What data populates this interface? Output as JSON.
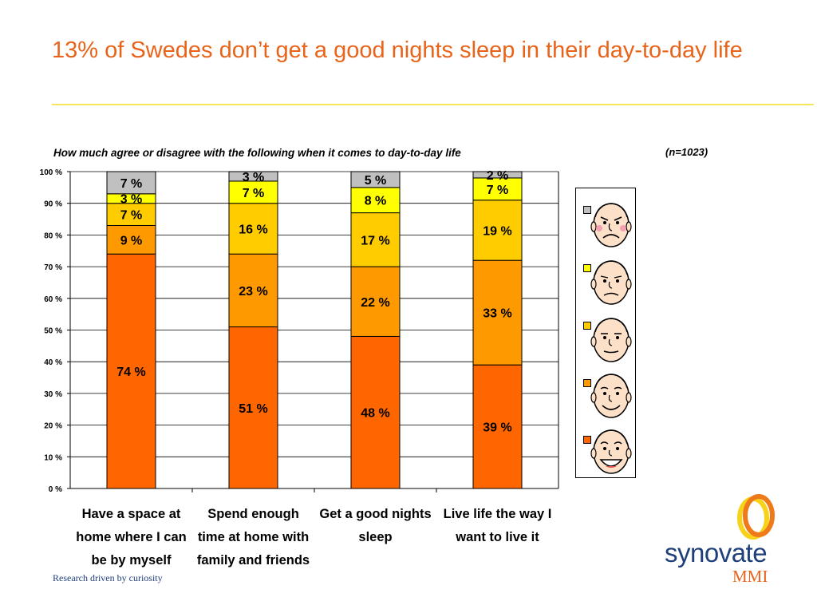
{
  "title": "13% of Swedes don’t get a good nights sleep in their day-to-day life",
  "question": "How much agree or disagree with the following when it comes to day-to-day life",
  "sample_size": "(n=1023)",
  "footer": {
    "tagline": "Research driven by curiosity",
    "logo_name": "synovate",
    "logo_sub": "MMI"
  },
  "colors": {
    "title": "#e8641b",
    "title_rule": "#f6e65a",
    "segments": [
      "#ff6600",
      "#ff9900",
      "#ffcc00",
      "#ffff00",
      "#c0c0c0"
    ]
  },
  "legend": {
    "faces": [
      "very-unhappy-face-icon",
      "unhappy-face-icon",
      "neutral-face-icon",
      "smiling-face-icon",
      "laughing-face-icon"
    ]
  },
  "chart_data": {
    "type": "bar",
    "stacked": true,
    "categories": [
      "Have a space at home where I can be by myself",
      "Spend enough time at home with family and friends",
      "Get a good nights sleep",
      "Live life the way I want to live it"
    ],
    "category_lines": [
      [
        "Have a space at",
        "home where I can",
        "be by myself"
      ],
      [
        "Spend enough",
        "time at home with",
        "family and friends"
      ],
      [
        "Get a good nights",
        "sleep"
      ],
      [
        "Live life the way I",
        "want to live it"
      ]
    ],
    "series": [
      {
        "values": [
          74,
          51,
          48,
          39
        ],
        "labels": [
          "74 %",
          "51 %",
          "48 %",
          "39 %"
        ]
      },
      {
        "values": [
          9,
          23,
          22,
          33
        ],
        "labels": [
          "9 %",
          "23 %",
          "22 %",
          "33 %"
        ]
      },
      {
        "values": [
          7,
          16,
          17,
          19
        ],
        "labels": [
          "7 %",
          "16 %",
          "17 %",
          "19 %"
        ]
      },
      {
        "values": [
          3,
          7,
          8,
          7
        ],
        "labels": [
          "3 %",
          "7 %",
          "8 %",
          "7 %"
        ]
      },
      {
        "values": [
          7,
          3,
          5,
          2
        ],
        "labels": [
          "7 %",
          "3 %",
          "5 %",
          "2 %"
        ]
      }
    ],
    "yticks": [
      "0 %",
      "10 %",
      "20 %",
      "30 %",
      "40 %",
      "50 %",
      "60 %",
      "70 %",
      "80 %",
      "90 %",
      "100 %"
    ],
    "ylim": [
      0,
      100
    ],
    "grid": true,
    "legend_position": "right"
  }
}
